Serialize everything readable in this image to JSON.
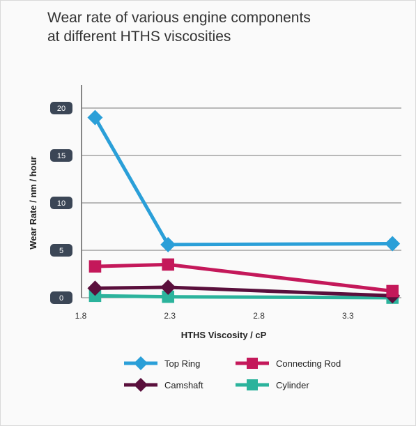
{
  "chart_data": {
    "type": "line",
    "title": "Wear rate of various engine components at different HTHS viscosities",
    "title_lines": [
      "Wear rate of various engine components",
      "at different HTHS viscosities"
    ],
    "xlabel": "HTHS Viscosity / cP",
    "ylabel": "Wear Rate / nm / hour",
    "xlim": [
      1.8,
      3.6
    ],
    "ylim": [
      0,
      20
    ],
    "xticks": [
      1.8,
      2.3,
      2.8,
      3.3
    ],
    "xtick_labels": [
      "1.8",
      "2.3",
      "2.8",
      "3.3"
    ],
    "yticks": [
      0,
      5,
      10,
      15,
      20
    ],
    "ytick_labels": [
      "0",
      "5",
      "10",
      "15",
      "20"
    ],
    "grid": "horizontal",
    "legend": "bottom",
    "series": [
      {
        "name": "Top Ring",
        "color": "#2a9fd8",
        "marker": "diamond",
        "x": [
          1.88,
          2.29,
          3.55
        ],
        "y": [
          19.0,
          5.6,
          5.7
        ]
      },
      {
        "name": "Connecting Rod",
        "color": "#c4185a",
        "marker": "square",
        "x": [
          1.88,
          2.29,
          3.55
        ],
        "y": [
          3.3,
          3.5,
          0.7
        ]
      },
      {
        "name": "Camshaft",
        "color": "#5a0f3c",
        "marker": "diamond",
        "x": [
          1.88,
          2.29,
          3.55
        ],
        "y": [
          1.0,
          1.1,
          0.2
        ]
      },
      {
        "name": "Cylinder",
        "color": "#2bb39c",
        "marker": "square",
        "x": [
          1.88,
          2.29,
          3.55
        ],
        "y": [
          0.2,
          0.1,
          0.0
        ]
      }
    ]
  }
}
